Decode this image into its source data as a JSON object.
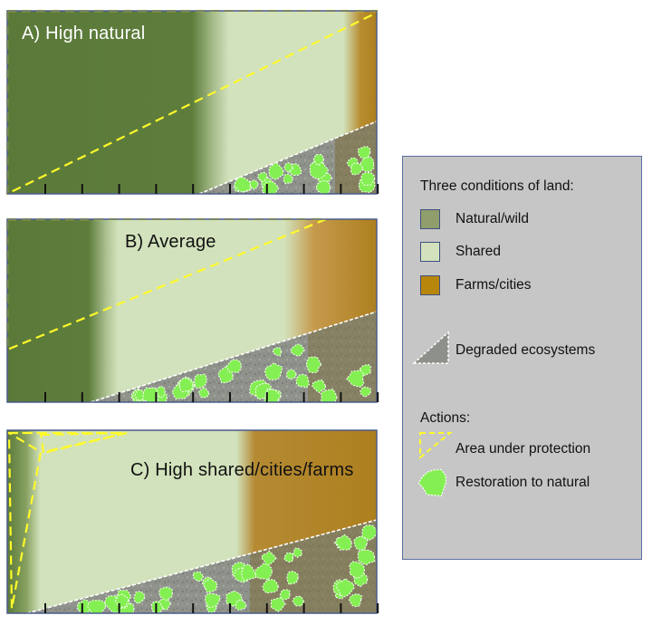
{
  "panels": [
    {
      "id": "a",
      "title": "A) High natural"
    },
    {
      "id": "b",
      "title": "B) Average"
    },
    {
      "id": "c",
      "title": "C) High shared/cities/farms"
    }
  ],
  "legend": {
    "heading": "Three conditions of land:",
    "conditions": [
      {
        "label": "Natural/wild",
        "color": "#8f9e6a"
      },
      {
        "label": "Shared",
        "color": "#d3e2bd"
      },
      {
        "label": "Farms/cities",
        "color": "#b8860b"
      }
    ],
    "degraded_label": "Degraded ecosystems",
    "actions_heading": "Actions:",
    "protection_label": "Area under protection",
    "restoration_label": "Restoration to natural"
  },
  "colors": {
    "natural": "#5b7a3a",
    "shared": "#d2e2bc",
    "farms": "#ae8021",
    "degraded": "#8e918a",
    "restoration": "#84ef52",
    "protection": "#fffa2a",
    "frame": "#4a5b8a"
  }
}
